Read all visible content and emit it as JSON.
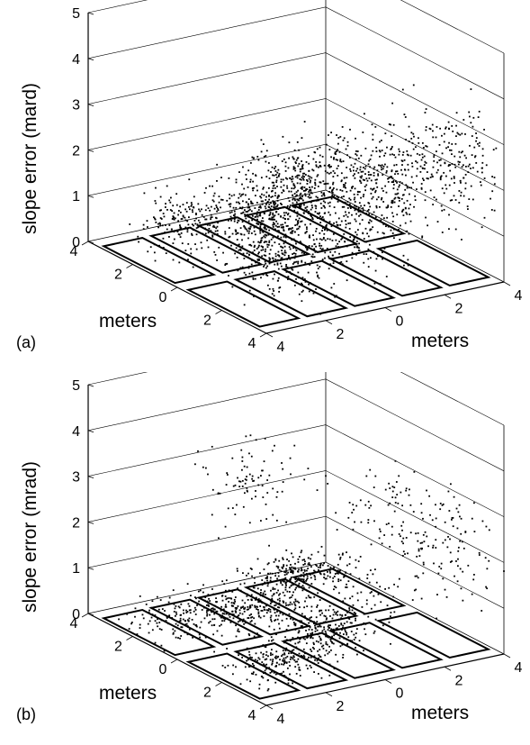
{
  "figure": {
    "panels": [
      {
        "panel_label": "(a)",
        "zlabel": "slope error (mard)",
        "xlabel": "meters",
        "ylabel": "meters"
      },
      {
        "panel_label": "(b)",
        "zlabel": "slope error (mrad)",
        "xlabel": "meters",
        "ylabel": "meters"
      }
    ]
  },
  "chart_data": [
    {
      "type": "scatter",
      "panel": "(a)",
      "projection": "3d",
      "xlabel": "meters",
      "ylabel": "meters",
      "zlabel": "slope error (mard)",
      "x_ticks": [
        "4",
        "2",
        "0",
        "2",
        "4"
      ],
      "y_ticks": [
        "4",
        "2",
        "0",
        "2",
        "4"
      ],
      "z_ticks": [
        "0",
        "1",
        "2",
        "3",
        "4",
        "5"
      ],
      "xlim": [
        -4,
        4
      ],
      "ylim": [
        -4,
        4
      ],
      "zlim": [
        0,
        5
      ],
      "grid": true,
      "legend": "none",
      "facets": {
        "rows": 5,
        "columns": 2,
        "x_range_left": [
          -3.5,
          -0.3
        ],
        "x_range_right": [
          0.3,
          3.5
        ],
        "y_range": [
          -4,
          4
        ]
      },
      "series": [
        {
          "name": "",
          "clusters": [
            {
              "x": -2.6,
              "y": -2.0,
              "z_mean": 0.9,
              "z_spread": 0.55,
              "count": 260
            },
            {
              "x": -1.2,
              "y": 0.5,
              "z_mean": 0.8,
              "z_spread": 0.5,
              "count": 260
            },
            {
              "x": -1.5,
              "y": 2.6,
              "z_mean": 0.9,
              "z_spread": 0.6,
              "count": 200
            },
            {
              "x": 0.0,
              "y": 0.0,
              "z_mean": 1.0,
              "z_spread": 0.7,
              "count": 200
            },
            {
              "x": 2.7,
              "y": -3.0,
              "z_mean": 2.4,
              "z_spread": 1.1,
              "count": 240
            },
            {
              "x": 1.4,
              "y": -1.2,
              "z_mean": 1.9,
              "z_spread": 1.0,
              "count": 200
            },
            {
              "x": 2.4,
              "y": 2.3,
              "z_mean": 1.0,
              "z_spread": 0.6,
              "count": 260
            },
            {
              "x": 3.5,
              "y": 0.6,
              "z_mean": 1.6,
              "z_spread": 0.9,
              "count": 160
            },
            {
              "x": -0.5,
              "y": -3.2,
              "z_mean": 1.2,
              "z_spread": 0.8,
              "count": 130
            }
          ]
        }
      ]
    },
    {
      "type": "scatter",
      "panel": "(b)",
      "projection": "3d",
      "xlabel": "meters",
      "ylabel": "meters",
      "zlabel": "slope error (mrad)",
      "x_ticks": [
        "4",
        "2",
        "0",
        "2",
        "4"
      ],
      "y_ticks": [
        "4",
        "2",
        "0",
        "2",
        "4"
      ],
      "z_ticks": [
        "0",
        "1",
        "2",
        "3",
        "4",
        "5"
      ],
      "xlim": [
        -4,
        4
      ],
      "ylim": [
        -4,
        4
      ],
      "zlim": [
        0,
        5
      ],
      "grid": true,
      "legend": "none",
      "facets": {
        "rows": 5,
        "columns": 2,
        "x_range_left": [
          -3.5,
          -0.3
        ],
        "x_range_right": [
          0.3,
          3.5
        ],
        "y_range": [
          -4,
          4
        ]
      },
      "series": [
        {
          "name": "",
          "clusters": [
            {
              "x": -2.6,
              "y": -2.0,
              "z_mean": 0.35,
              "z_spread": 0.3,
              "count": 260
            },
            {
              "x": -1.2,
              "y": 0.5,
              "z_mean": 0.3,
              "z_spread": 0.25,
              "count": 240
            },
            {
              "x": -1.5,
              "y": 2.6,
              "z_mean": 0.35,
              "z_spread": 0.3,
              "count": 180
            },
            {
              "x": 1.2,
              "y": 0.0,
              "z_mean": 0.4,
              "z_spread": 0.3,
              "count": 220
            },
            {
              "x": 2.4,
              "y": 2.3,
              "z_mean": 0.3,
              "z_spread": 0.25,
              "count": 200
            },
            {
              "x": 2.7,
              "y": -3.0,
              "z_mean": 2.2,
              "z_spread": 1.0,
              "count": 130
            },
            {
              "x": -3.3,
              "y": -1.0,
              "z_mean": 2.4,
              "z_spread": 0.7,
              "count": 90
            },
            {
              "x": -0.6,
              "y": -3.4,
              "z_mean": 2.2,
              "z_spread": 0.8,
              "count": 60
            },
            {
              "x": 3.5,
              "y": 0.6,
              "z_mean": 1.7,
              "z_spread": 0.8,
              "count": 80
            }
          ]
        }
      ]
    }
  ]
}
